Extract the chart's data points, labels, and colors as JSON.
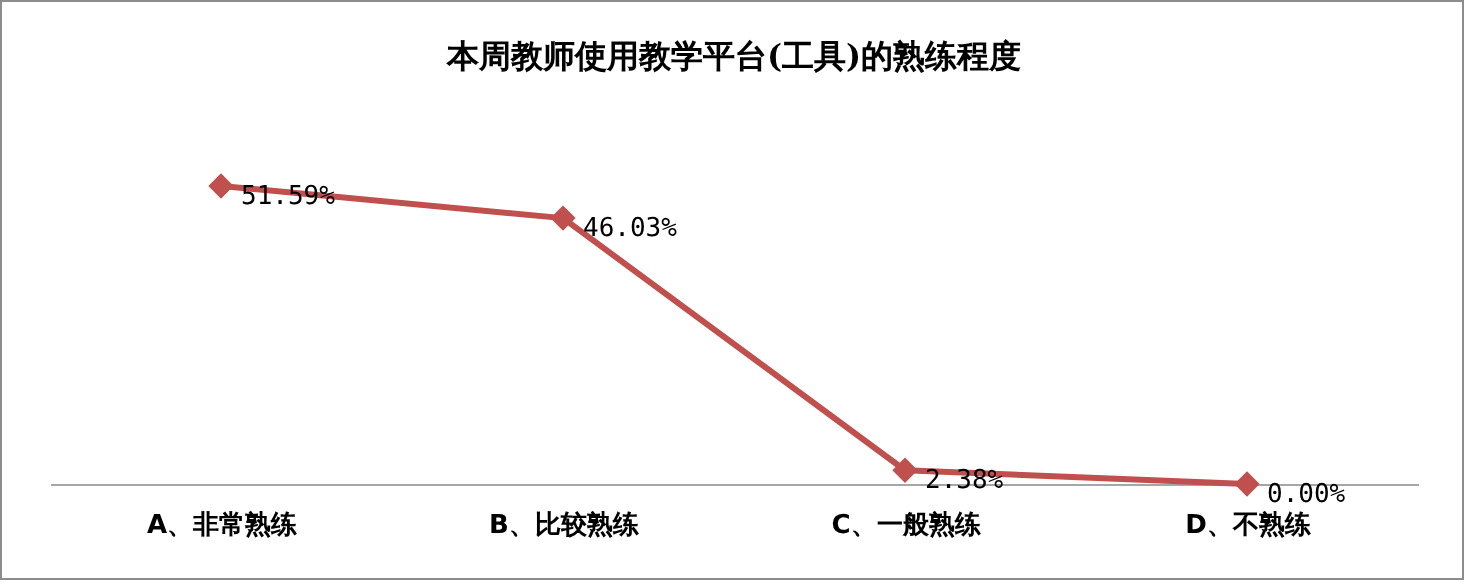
{
  "chart_data": {
    "type": "line",
    "title": "本周教师使用教学平台(工具)的熟练程度",
    "categories": [
      "A、非常熟练",
      "B、比较熟练",
      "C、一般熟练",
      "D、不熟练"
    ],
    "series": [
      {
        "color": "#c0504d",
        "values": [
          51.59,
          46.03,
          2.38,
          0.0
        ],
        "value_labels": [
          "51.59%",
          "46.03%",
          "2.38%",
          "0.00%"
        ]
      }
    ],
    "marker": "diamond",
    "line_style": "solid"
  }
}
